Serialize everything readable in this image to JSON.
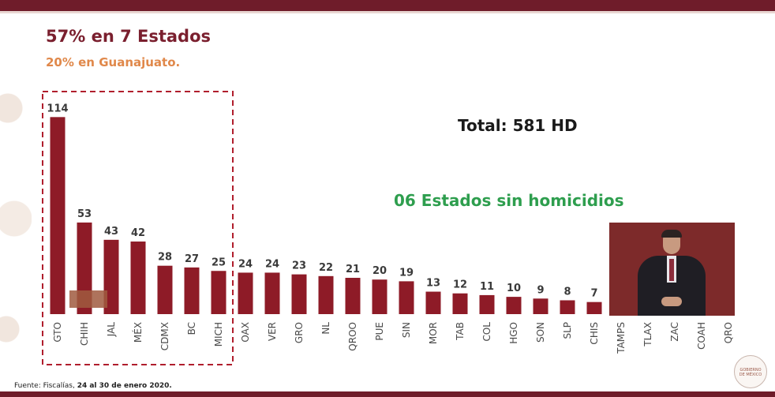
{
  "slide": {
    "title": "57% en 7 Estados",
    "subtitle": "20% en Guanajuato.",
    "total": "Total: 581 HD",
    "no_homicides": "06 Estados sin homicidios",
    "source_prefix": "Fuente: Fiscalías, ",
    "source_dates": "24 al 30 de enero 2020."
  },
  "colors": {
    "bar": "#8e1b27",
    "title": "#7a1f2e",
    "subtitle": "#e0884a",
    "no_homicides": "#2e9e4e",
    "highlight_box": "#b01e2d"
  },
  "chart_data": {
    "type": "bar",
    "title": "",
    "xlabel": "",
    "ylabel": "",
    "categories": [
      "GTO",
      "CHIH",
      "JAL",
      "MÉX",
      "CDMX",
      "BC",
      "MICH",
      "OAX",
      "VER",
      "GRO",
      "NL",
      "QROO",
      "PUE",
      "SIN",
      "MOR",
      "TAB",
      "COL",
      "HGO",
      "SON",
      "SLP",
      "CHIS",
      "TAMPS",
      "TLAX",
      "ZAC",
      "COAH",
      "QRO"
    ],
    "values": [
      114,
      53,
      43,
      42,
      28,
      27,
      25,
      24,
      24,
      23,
      22,
      21,
      20,
      19,
      13,
      12,
      11,
      10,
      9,
      8,
      7,
      0,
      0,
      0,
      0,
      0
    ],
    "value_labels": [
      "114",
      "53",
      "43",
      "42",
      "28",
      "27",
      "25",
      "24",
      "24",
      "23",
      "22",
      "21",
      "20",
      "19",
      "13",
      "12",
      "11",
      "10",
      "9",
      "8",
      "7",
      "",
      "",
      "",
      "",
      ""
    ],
    "highlight_range": [
      0,
      6
    ],
    "grid": false,
    "legend": "none"
  },
  "interpreter": {
    "icon": "sign-language-interpreter-icon"
  },
  "seal": {
    "text": "GOBIERNO DE MÉXICO"
  }
}
